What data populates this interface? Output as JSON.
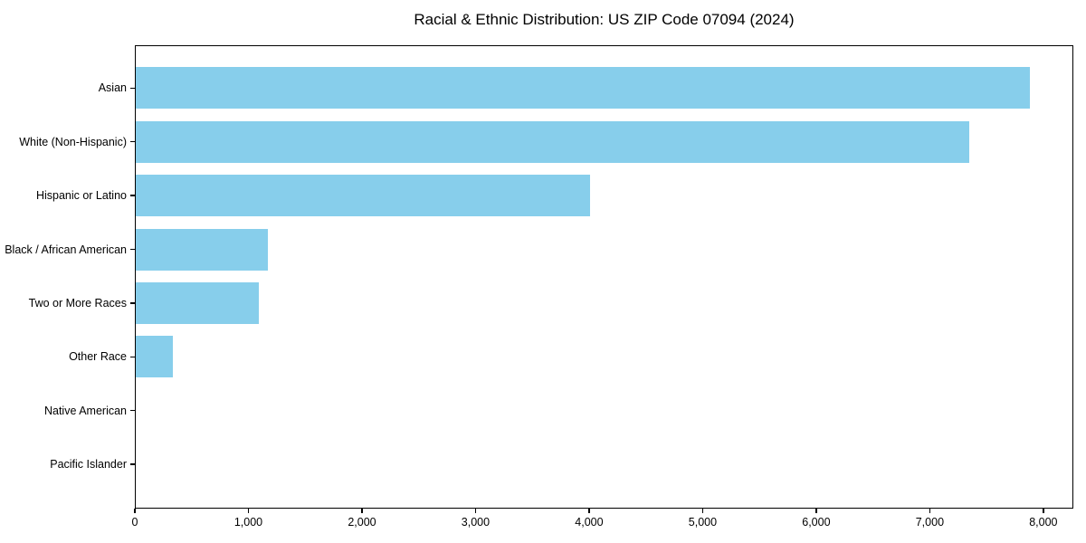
{
  "chart_data": {
    "type": "bar",
    "orientation": "horizontal",
    "title": "Racial & Ethnic Distribution: US ZIP Code 07094 (2024)",
    "categories": [
      "Asian",
      "White (Non-Hispanic)",
      "Hispanic or Latino",
      "Black / African American",
      "Two or More Races",
      "Other Race",
      "Native American",
      "Pacific Islander"
    ],
    "values": [
      7870,
      7340,
      4000,
      1165,
      1080,
      330,
      0,
      0
    ],
    "bar_color": "#87CEEB",
    "axis_color": "#000000",
    "background_color": "#ffffff",
    "xlabel": "",
    "ylabel": "",
    "xlim": [
      0,
      8264
    ],
    "x_ticks": [
      0,
      1000,
      2000,
      3000,
      4000,
      5000,
      6000,
      7000,
      8000
    ],
    "x_tick_labels": [
      "0",
      "1,000",
      "2,000",
      "3,000",
      "4,000",
      "5,000",
      "6,000",
      "7,000",
      "8,000"
    ],
    "grid": false,
    "legend": false
  }
}
